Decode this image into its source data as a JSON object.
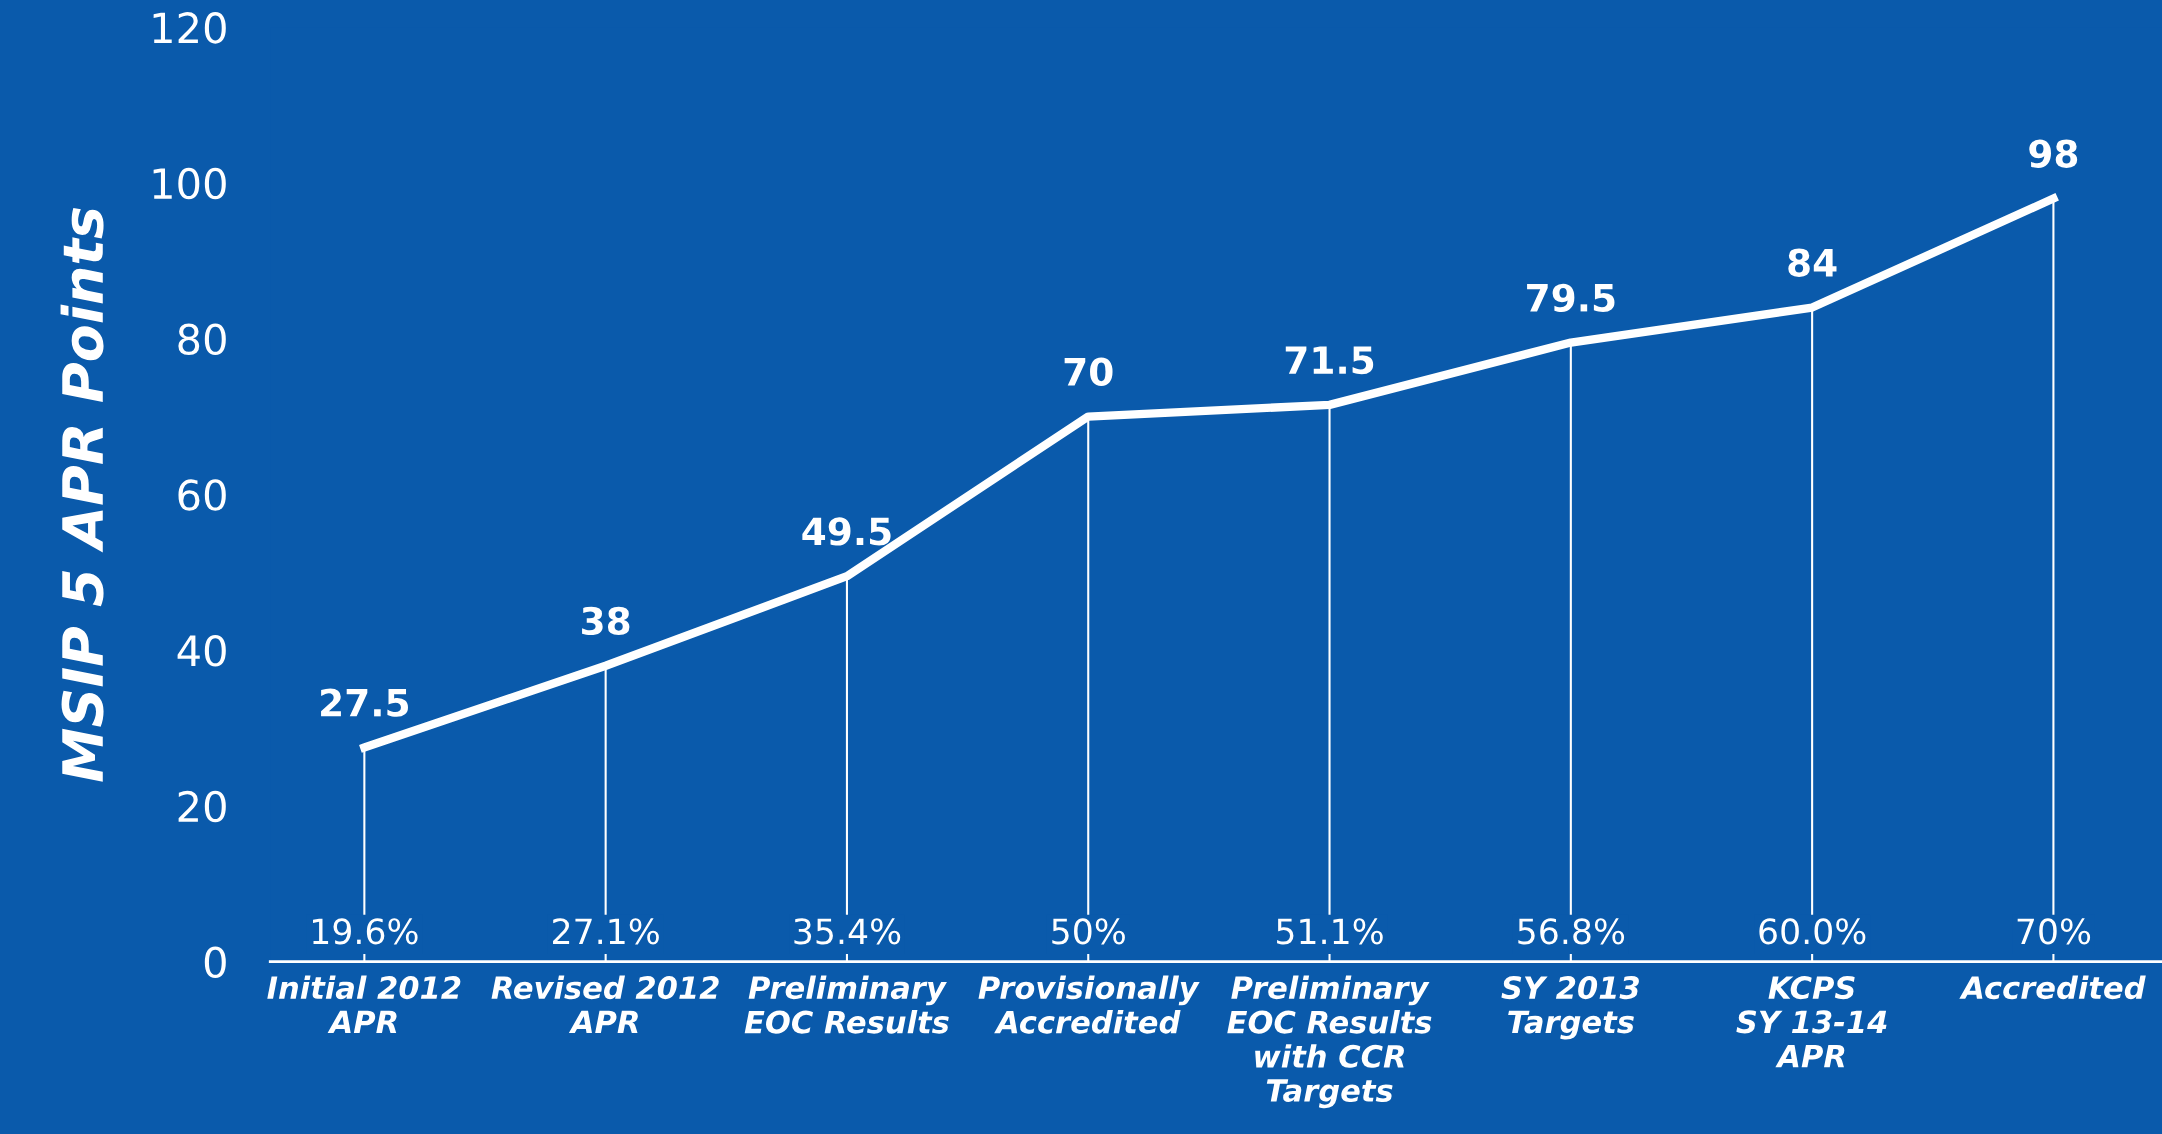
{
  "chart_data": {
    "type": "line",
    "ylabel": "MSIP 5 APR Points",
    "categories": [
      "Initial 2012\nAPR",
      "Revised 2012\nAPR",
      "Preliminary\nEOC Results",
      "Provisionally\nAccredited",
      "Preliminary\nEOC Results\nwith CCR\nTargets",
      "SY 2013\nTargets",
      "KCPS\nSY 13-14\nAPR",
      "Accredited"
    ],
    "series": [
      {
        "color": "#ffffff",
        "values": [
          27.5,
          38,
          49.5,
          70,
          71.5,
          79.5,
          84,
          98
        ]
      }
    ],
    "data_labels": true,
    "ylim": [
      0,
      120
    ],
    "yticks": [
      0,
      20,
      40,
      60,
      80,
      100,
      120
    ],
    "grid": "x",
    "marker": "none",
    "line_style": "solid",
    "annotations": [
      {
        "text": "19.6%",
        "x": "Initial 2012\nAPR"
      },
      {
        "text": "27.1%",
        "x": "Revised 2012\nAPR"
      },
      {
        "text": "35.4%",
        "x": "Preliminary\nEOC Results"
      },
      {
        "text": "50%",
        "x": "Provisionally\nAccredited"
      },
      {
        "text": "51.1%",
        "x": "Preliminary\nEOC Results\nwith CCR\nTargets"
      },
      {
        "text": "56.8%",
        "x": "SY 2013\nTargets"
      },
      "60.0%",
      "70%"
    ]
  }
}
